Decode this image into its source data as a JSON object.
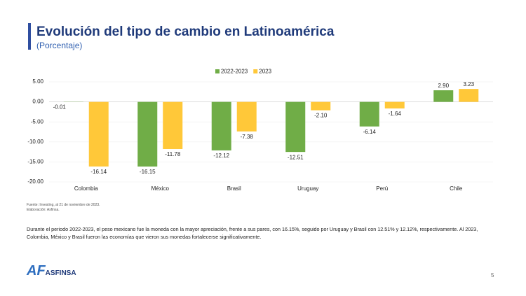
{
  "chart_data": {
    "type": "bar",
    "title": "Evolución del tipo de cambio en Latinoamérica",
    "subtitle": "(Porcentaje)",
    "categories": [
      "Colombia",
      "México",
      "Brasil",
      "Uruguay",
      "Perú",
      "Chile"
    ],
    "series": [
      {
        "name": "2022-2023",
        "color": "#70ad47",
        "values": [
          -0.01,
          -16.15,
          -12.12,
          -12.51,
          -6.14,
          2.9
        ],
        "value_labels": [
          "-0.01",
          "-16.15",
          "-12.12",
          "-12.51",
          "-6.14",
          "2.90"
        ]
      },
      {
        "name": "2023",
        "color": "#ffc839",
        "values": [
          -16.14,
          -11.78,
          -7.38,
          -2.1,
          -1.64,
          3.23
        ],
        "value_labels": [
          "-16.14",
          "-11.78",
          "-7.38",
          "-2.10",
          "-1.64",
          "3.23"
        ]
      }
    ],
    "ylim": [
      -20,
      5
    ],
    "yticks": [
      {
        "value": 5,
        "label": "5.00"
      },
      {
        "value": 0,
        "label": "0.00"
      },
      {
        "value": -5,
        "label": "-5.00"
      },
      {
        "value": -10,
        "label": "-10.00"
      },
      {
        "value": -15,
        "label": "-15.00"
      },
      {
        "value": -20,
        "label": "-20.00"
      }
    ],
    "grid": true,
    "legend": "top"
  },
  "source": "Fuente: Investing, al 21 de noviembre de 2023.",
  "credit": "Elaboración: Asfinsa.",
  "paragraph": "Durante el periodo 2022-2023, el peso mexicano fue la moneda con la mayor apreciación, frente a sus pares, con 16.15%, seguido por Uruguay y Brasil con 12.51% y 12.12%, respectivamente. Al 2023, Colombia, México y Brasil fueron las economías que vieron sus monedas fortalecerse significativamente.",
  "logo": "ASFINSA",
  "page_number": "5"
}
